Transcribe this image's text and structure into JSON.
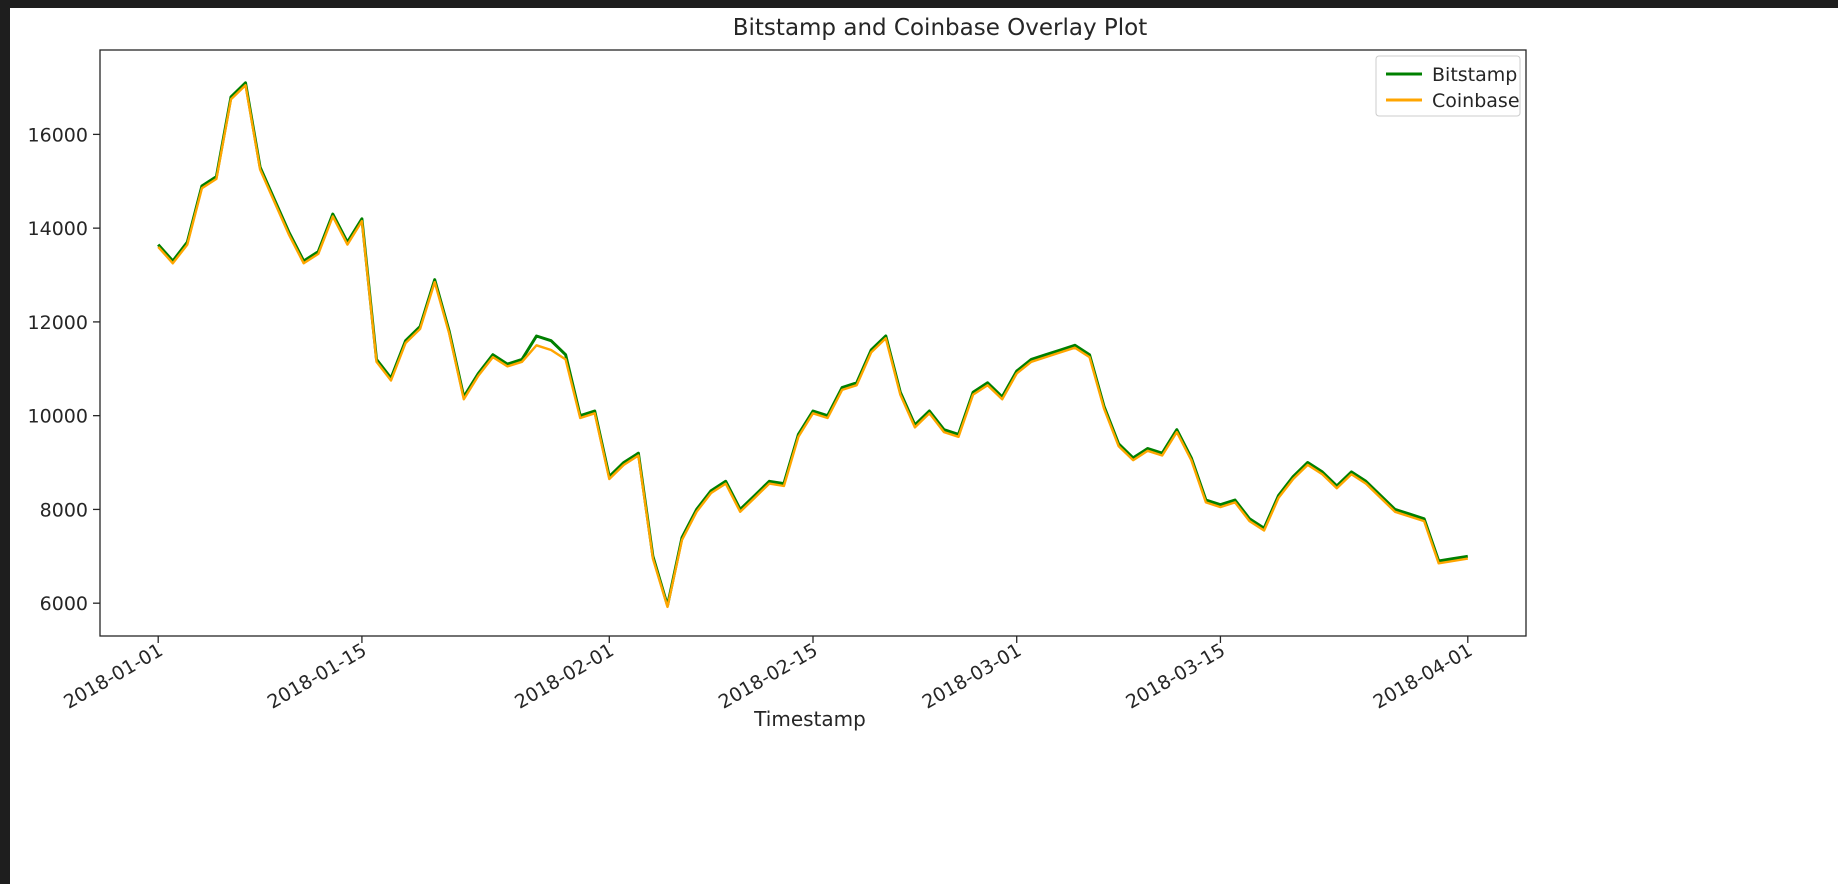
{
  "chart_data": {
    "type": "line",
    "title": "Bitstamp and Coinbase Overlay Plot",
    "xlabel": "Timestamp",
    "ylabel": "",
    "x_type": "date",
    "xlim": [
      "2017-12-28",
      "2018-04-05"
    ],
    "ylim": [
      5300,
      17800
    ],
    "grid": false,
    "legend_position": "top-right",
    "yticks": [
      6000,
      8000,
      10000,
      12000,
      14000,
      16000
    ],
    "xticks": [
      "2018-01-01",
      "2018-01-15",
      "2018-02-01",
      "2018-02-15",
      "2018-03-01",
      "2018-03-15",
      "2018-04-01"
    ],
    "series": [
      {
        "name": "Bitstamp",
        "color": "#008000",
        "x": [
          "2018-01-01",
          "2018-01-02",
          "2018-01-03",
          "2018-01-04",
          "2018-01-05",
          "2018-01-06",
          "2018-01-07",
          "2018-01-08",
          "2018-01-09",
          "2018-01-10",
          "2018-01-11",
          "2018-01-12",
          "2018-01-13",
          "2018-01-14",
          "2018-01-15",
          "2018-01-16",
          "2018-01-17",
          "2018-01-18",
          "2018-01-19",
          "2018-01-20",
          "2018-01-21",
          "2018-01-22",
          "2018-01-23",
          "2018-01-24",
          "2018-01-25",
          "2018-01-26",
          "2018-01-27",
          "2018-01-28",
          "2018-01-29",
          "2018-01-30",
          "2018-01-31",
          "2018-02-01",
          "2018-02-02",
          "2018-02-03",
          "2018-02-04",
          "2018-02-05",
          "2018-02-06",
          "2018-02-07",
          "2018-02-08",
          "2018-02-09",
          "2018-02-10",
          "2018-02-11",
          "2018-02-12",
          "2018-02-13",
          "2018-02-14",
          "2018-02-15",
          "2018-02-16",
          "2018-02-17",
          "2018-02-18",
          "2018-02-19",
          "2018-02-20",
          "2018-02-21",
          "2018-02-22",
          "2018-02-23",
          "2018-02-24",
          "2018-02-25",
          "2018-02-26",
          "2018-02-27",
          "2018-02-28",
          "2018-03-01",
          "2018-03-02",
          "2018-03-03",
          "2018-03-04",
          "2018-03-05",
          "2018-03-06",
          "2018-03-07",
          "2018-03-08",
          "2018-03-09",
          "2018-03-10",
          "2018-03-11",
          "2018-03-12",
          "2018-03-13",
          "2018-03-14",
          "2018-03-15",
          "2018-03-16",
          "2018-03-17",
          "2018-03-18",
          "2018-03-19",
          "2018-03-20",
          "2018-03-21",
          "2018-03-22",
          "2018-03-23",
          "2018-03-24",
          "2018-03-25",
          "2018-03-26",
          "2018-03-27",
          "2018-03-28",
          "2018-03-29",
          "2018-03-30",
          "2018-03-31",
          "2018-04-01"
        ],
        "y": [
          13650,
          13300,
          13700,
          14900,
          15100,
          16800,
          17100,
          15300,
          14600,
          13900,
          13300,
          13500,
          14300,
          13700,
          14200,
          11200,
          10800,
          11600,
          11900,
          12900,
          11800,
          10400,
          10900,
          11300,
          11100,
          11200,
          11700,
          11600,
          11300,
          10000,
          10100,
          8700,
          9000,
          9200,
          7000,
          5950,
          7400,
          8000,
          8400,
          8600,
          8000,
          8300,
          8600,
          8550,
          9600,
          10100,
          10000,
          10600,
          10700,
          11400,
          11700,
          10500,
          9800,
          10100,
          9700,
          9600,
          10500,
          10700,
          10400,
          10950,
          11200,
          11300,
          11400,
          11500,
          11300,
          10200,
          9400,
          9100,
          9300,
          9200,
          9700,
          9100,
          8200,
          8100,
          8200,
          7800,
          7600,
          8300,
          8700,
          9000,
          8800,
          8500,
          8800,
          8600,
          8300,
          8000,
          7900,
          7800,
          6900,
          6950,
          7000
        ]
      },
      {
        "name": "Coinbase",
        "color": "#ffa500",
        "x": [
          "2018-01-01",
          "2018-01-02",
          "2018-01-03",
          "2018-01-04",
          "2018-01-05",
          "2018-01-06",
          "2018-01-07",
          "2018-01-08",
          "2018-01-09",
          "2018-01-10",
          "2018-01-11",
          "2018-01-12",
          "2018-01-13",
          "2018-01-14",
          "2018-01-15",
          "2018-01-16",
          "2018-01-17",
          "2018-01-18",
          "2018-01-19",
          "2018-01-20",
          "2018-01-21",
          "2018-01-22",
          "2018-01-23",
          "2018-01-24",
          "2018-01-25",
          "2018-01-26",
          "2018-01-27",
          "2018-01-28",
          "2018-01-29",
          "2018-01-30",
          "2018-01-31",
          "2018-02-01",
          "2018-02-02",
          "2018-02-03",
          "2018-02-04",
          "2018-02-05",
          "2018-02-06",
          "2018-02-07",
          "2018-02-08",
          "2018-02-09",
          "2018-02-10",
          "2018-02-11",
          "2018-02-12",
          "2018-02-13",
          "2018-02-14",
          "2018-02-15",
          "2018-02-16",
          "2018-02-17",
          "2018-02-18",
          "2018-02-19",
          "2018-02-20",
          "2018-02-21",
          "2018-02-22",
          "2018-02-23",
          "2018-02-24",
          "2018-02-25",
          "2018-02-26",
          "2018-02-27",
          "2018-02-28",
          "2018-03-01",
          "2018-03-02",
          "2018-03-03",
          "2018-03-04",
          "2018-03-05",
          "2018-03-06",
          "2018-03-07",
          "2018-03-08",
          "2018-03-09",
          "2018-03-10",
          "2018-03-11",
          "2018-03-12",
          "2018-03-13",
          "2018-03-14",
          "2018-03-15",
          "2018-03-16",
          "2018-03-17",
          "2018-03-18",
          "2018-03-19",
          "2018-03-20",
          "2018-03-21",
          "2018-03-22",
          "2018-03-23",
          "2018-03-24",
          "2018-03-25",
          "2018-03-26",
          "2018-03-27",
          "2018-03-28",
          "2018-03-29",
          "2018-03-30",
          "2018-03-31",
          "2018-04-01"
        ],
        "y": [
          13600,
          13250,
          13650,
          14850,
          15050,
          16750,
          17050,
          15250,
          14550,
          13850,
          13250,
          13450,
          14250,
          13650,
          14150,
          11150,
          10750,
          11550,
          11850,
          12850,
          11750,
          10350,
          10850,
          11250,
          11050,
          11150,
          11500,
          11400,
          11200,
          9950,
          10050,
          8650,
          8950,
          9150,
          6950,
          5920,
          7350,
          7950,
          8350,
          8550,
          7950,
          8250,
          8550,
          8500,
          9550,
          10050,
          9950,
          10550,
          10650,
          11350,
          11650,
          10450,
          9750,
          10050,
          9650,
          9550,
          10450,
          10650,
          10350,
          10900,
          11150,
          11250,
          11350,
          11450,
          11250,
          10150,
          9350,
          9050,
          9250,
          9150,
          9650,
          9050,
          8150,
          8050,
          8150,
          7750,
          7550,
          8250,
          8650,
          8950,
          8750,
          8450,
          8750,
          8550,
          8250,
          7950,
          7850,
          7750,
          6850,
          6900,
          6950
        ]
      }
    ]
  }
}
